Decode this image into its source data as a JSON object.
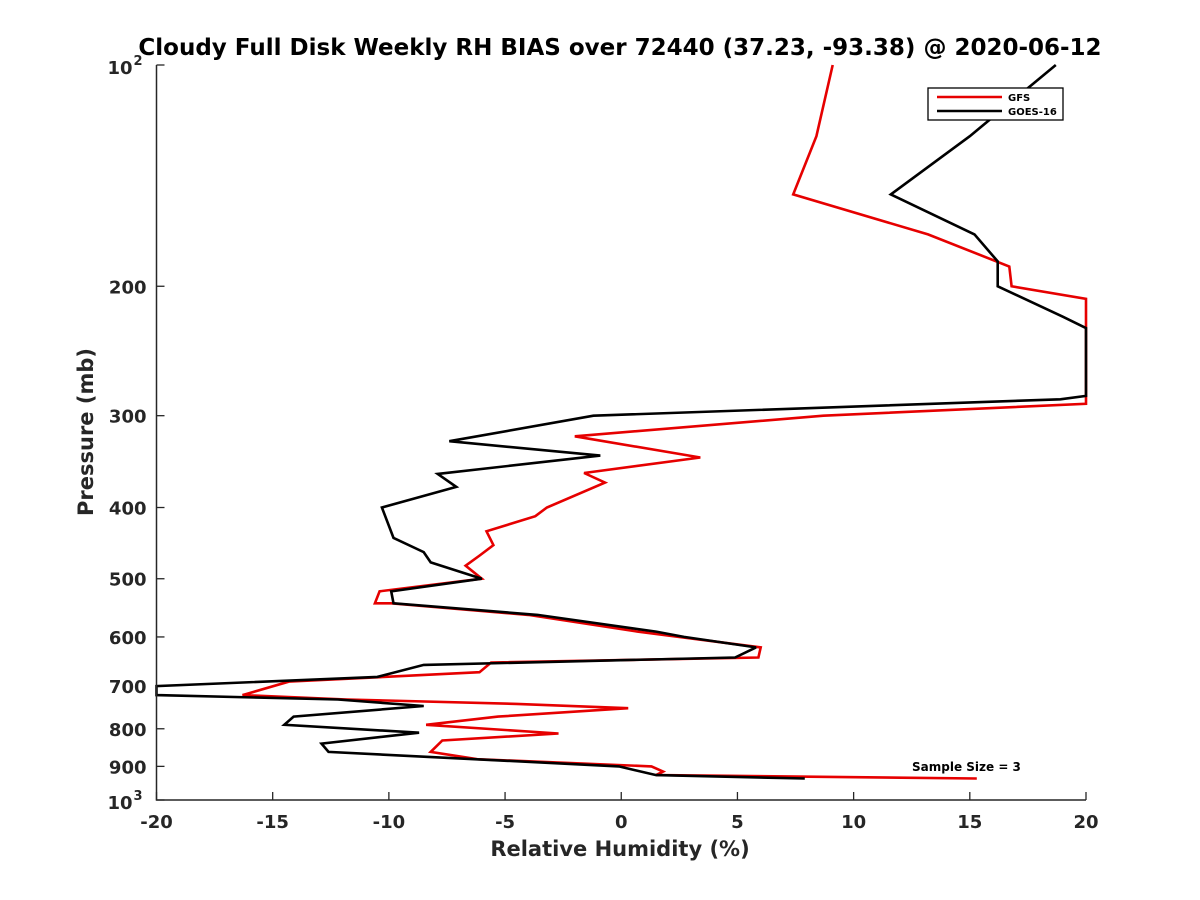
{
  "chart_data": {
    "type": "line",
    "title": "Cloudy Full Disk Weekly RH BIAS over 72440 (37.23, -93.38) @ 2020-06-12",
    "xlabel": "Relative Humidity (%)",
    "ylabel": "Pressure (mb)",
    "xlim": [
      -20,
      20
    ],
    "ylim": [
      100,
      1000
    ],
    "y_scale": "log",
    "y_reversed": true,
    "grid": false,
    "legend_position": "top-right",
    "x_ticks": [
      {
        "value": -20,
        "label": "-20"
      },
      {
        "value": -15,
        "label": "-15"
      },
      {
        "value": -10,
        "label": "-10"
      },
      {
        "value": -5,
        "label": "-5"
      },
      {
        "value": 0,
        "label": "0"
      },
      {
        "value": 5,
        "label": "5"
      },
      {
        "value": 10,
        "label": "10"
      },
      {
        "value": 15,
        "label": "15"
      },
      {
        "value": 20,
        "label": "20"
      }
    ],
    "y_ticks": [
      {
        "value": 100,
        "base": "10",
        "exp": "2"
      },
      {
        "value": 200,
        "label": "200"
      },
      {
        "value": 300,
        "label": "300"
      },
      {
        "value": 400,
        "label": "400"
      },
      {
        "value": 500,
        "label": "500"
      },
      {
        "value": 600,
        "label": "600"
      },
      {
        "value": 700,
        "label": "700"
      },
      {
        "value": 800,
        "label": "800"
      },
      {
        "value": 900,
        "label": "900"
      },
      {
        "value": 1000,
        "base": "10",
        "exp": "3"
      }
    ],
    "annotation": "Sample Size = 3",
    "series": [
      {
        "name": "GFS",
        "color": "#e60000",
        "points": [
          [
            9.1,
            100
          ],
          [
            8.4,
            125
          ],
          [
            7.4,
            150
          ],
          [
            13.2,
            170
          ],
          [
            16.7,
            188
          ],
          [
            16.8,
            200
          ],
          [
            20.0,
            208
          ],
          [
            20.0,
            289
          ],
          [
            8.7,
            300
          ],
          [
            -2.0,
            320
          ],
          [
            3.4,
            342
          ],
          [
            -1.6,
            359
          ],
          [
            -0.7,
            370
          ],
          [
            -3.2,
            400
          ],
          [
            -3.7,
            411
          ],
          [
            -5.8,
            431
          ],
          [
            -5.5,
            450
          ],
          [
            -6.1,
            465
          ],
          [
            -6.7,
            480
          ],
          [
            -6.0,
            500
          ],
          [
            -10.4,
            520
          ],
          [
            -10.6,
            540
          ],
          [
            -9.9,
            540
          ],
          [
            -4.0,
            560
          ],
          [
            0.7,
            590
          ],
          [
            6.0,
            620
          ],
          [
            5.9,
            640
          ],
          [
            -5.6,
            650
          ],
          [
            -6.1,
            670
          ],
          [
            -14.3,
            690
          ],
          [
            -16.3,
            720
          ],
          [
            -11.8,
            730
          ],
          [
            -4.5,
            740
          ],
          [
            0.3,
            750
          ],
          [
            -5.3,
            770
          ],
          [
            -8.4,
            790
          ],
          [
            -2.7,
            812
          ],
          [
            -7.7,
            830
          ],
          [
            -8.2,
            860
          ],
          [
            -6.2,
            880
          ],
          [
            1.3,
            900
          ],
          [
            1.8,
            915
          ],
          [
            1.5,
            925
          ],
          [
            15.3,
            935
          ]
        ]
      },
      {
        "name": "GOES-16",
        "color": "#000000",
        "points": [
          [
            18.7,
            100
          ],
          [
            15.0,
            125
          ],
          [
            11.6,
            150
          ],
          [
            15.2,
            170
          ],
          [
            16.2,
            185
          ],
          [
            16.2,
            200
          ],
          [
            19.0,
            220
          ],
          [
            20.0,
            228
          ],
          [
            20.0,
            282
          ],
          [
            18.9,
            285
          ],
          [
            -1.2,
            300
          ],
          [
            -7.4,
            325
          ],
          [
            -0.9,
            340
          ],
          [
            -7.9,
            360
          ],
          [
            -7.1,
            375
          ],
          [
            -10.3,
            400
          ],
          [
            -9.8,
            440
          ],
          [
            -8.5,
            460
          ],
          [
            -8.2,
            475
          ],
          [
            -6.0,
            500
          ],
          [
            -9.9,
            520
          ],
          [
            -9.8,
            540
          ],
          [
            -3.6,
            560
          ],
          [
            1.5,
            590
          ],
          [
            2.7,
            600
          ],
          [
            5.8,
            620
          ],
          [
            4.9,
            640
          ],
          [
            -8.5,
            655
          ],
          [
            -10.5,
            680
          ],
          [
            -20.0,
            700
          ],
          [
            -20.0,
            720
          ],
          [
            -12.2,
            730
          ],
          [
            -8.5,
            745
          ],
          [
            -14.1,
            770
          ],
          [
            -14.5,
            790
          ],
          [
            -8.7,
            810
          ],
          [
            -12.9,
            838
          ],
          [
            -12.6,
            860
          ],
          [
            -0.1,
            900
          ],
          [
            1.5,
            925
          ],
          [
            7.9,
            935
          ]
        ]
      }
    ]
  }
}
